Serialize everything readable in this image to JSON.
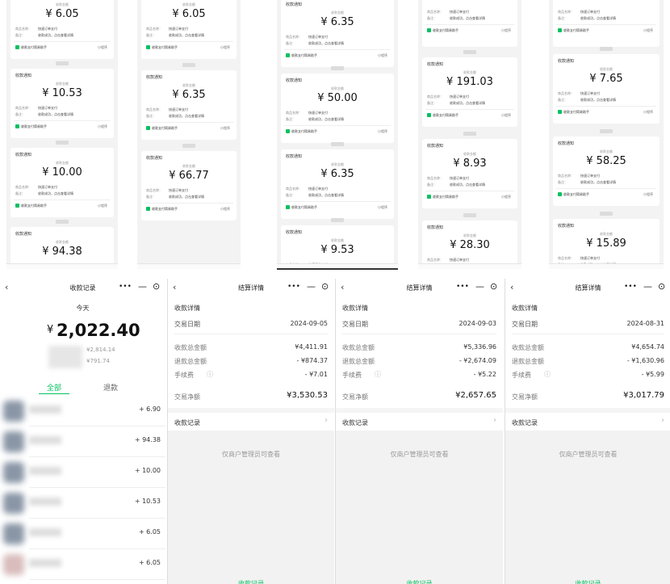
{
  "card_template": {
    "header": "收款通知",
    "amount_label": "收款金额",
    "field1_label": "商品名称：",
    "field1_value": "快速订单支付",
    "field2_label": "备注：",
    "field2_value": "收款成功，点击查看详情",
    "footer_left": "收款支付简易助手",
    "footer_right": "小程序"
  },
  "top_panels": [
    {
      "amounts": [
        "¥ 6.05",
        "¥ 10.53",
        "¥ 10.00",
        "¥ 94.38"
      ]
    },
    {
      "amounts": [
        "¥ 6.05",
        "¥ 6.35",
        "¥ 66.77"
      ]
    },
    {
      "amounts": [
        "¥ 6.35",
        "¥ 50.00",
        "¥ 6.35",
        "¥ 9.53"
      ]
    },
    {
      "amounts": [
        "¥ 191.03",
        "¥ 8.93",
        "¥ 28.30"
      ]
    },
    {
      "amounts": [
        "¥ 7.65",
        "¥ 58.25",
        "¥ 15.89"
      ]
    }
  ],
  "records": {
    "title": "收款记录",
    "day": "今天",
    "currency": "¥",
    "total": "2,022.40",
    "income": "¥2,814.14",
    "refund": "¥791.74",
    "tabs": [
      "全部",
      "退款"
    ],
    "items": [
      "+ 6.90",
      "+ 94.38",
      "+ 10.00",
      "+ 10.53",
      "+ 6.05",
      "+ 6.05"
    ]
  },
  "settlements": {
    "title": "结算详情",
    "section": "收款详情",
    "labels": {
      "date": "交易日期",
      "total": "收款总金额",
      "refund": "退款总金额",
      "fee": "手续费",
      "net": "交易净额"
    },
    "record_link": "收款记录",
    "notice": "仅商户管理员可查看",
    "footer_button": "收款记录",
    "panels": [
      {
        "date": "2024-09-05",
        "total": "¥4,411.91",
        "refund": "- ¥874.37",
        "fee": "- ¥7.01",
        "net": "¥3,530.53"
      },
      {
        "date": "2024-09-03",
        "total": "¥5,336.96",
        "refund": "- ¥2,674.09",
        "fee": "- ¥5.22",
        "net": "¥2,657.65"
      },
      {
        "date": "2024-08-31",
        "total": "¥4,654.74",
        "refund": "- ¥1,630.96",
        "fee": "- ¥5.99",
        "net": "¥3,017.79"
      }
    ]
  }
}
